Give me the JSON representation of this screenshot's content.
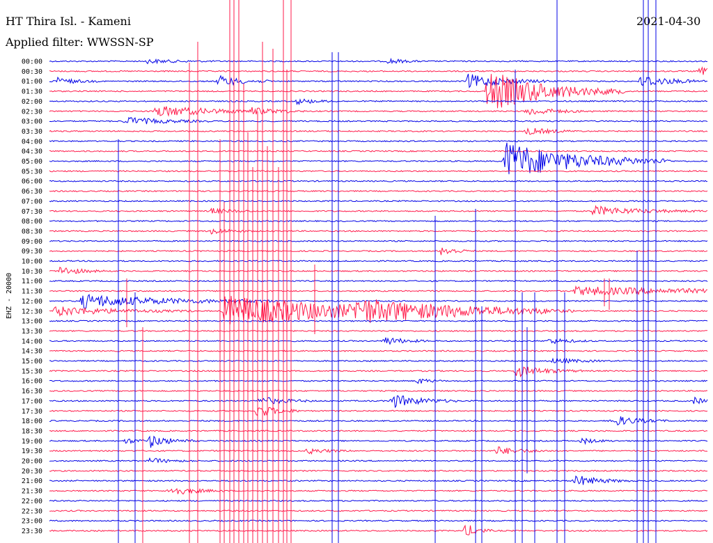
{
  "header": {
    "station": "HT Thira Isl. - Kameni",
    "filter": "Applied filter: WWSSN-SP",
    "date": "2021-04-30"
  },
  "colors": {
    "trace_a": "#0000e6",
    "trace_b": "#ff1a4a"
  },
  "chart_data": {
    "type": "line",
    "title": "HT Thira Isl. - Kameni",
    "subtitle": "Applied filter: WWSSN-SP",
    "ylabel": "EHZ - 20000",
    "y_ticks": [
      "00:00",
      "00:30",
      "01:00",
      "01:30",
      "02:00",
      "02:30",
      "03:00",
      "03:30",
      "04:00",
      "04:30",
      "05:00",
      "05:30",
      "06:00",
      "06:30",
      "07:00",
      "07:30",
      "08:00",
      "08:30",
      "09:00",
      "09:30",
      "10:00",
      "10:30",
      "11:00",
      "11:30",
      "12:00",
      "12:30",
      "13:00",
      "13:30",
      "14:00",
      "14:30",
      "15:00",
      "15:30",
      "16:00",
      "16:30",
      "17:00",
      "17:30",
      "18:00",
      "18:30",
      "19:00",
      "19:30",
      "20:00",
      "20:30",
      "21:00",
      "21:30",
      "22:00",
      "22:30",
      "23:00",
      "23:30"
    ],
    "x_range_minutes": [
      0,
      30
    ],
    "row_colors": [
      "blue",
      "red"
    ],
    "events": [
      {
        "row": "00:00",
        "minute": 4.5,
        "amp": 3,
        "dur": 1.2
      },
      {
        "row": "00:00",
        "minute": 15.5,
        "amp": 4,
        "dur": 0.6
      },
      {
        "row": "00:30",
        "minute": 29.7,
        "amp": 6,
        "dur": 0.5
      },
      {
        "row": "01:00",
        "minute": 0.2,
        "amp": 6,
        "dur": 0.8
      },
      {
        "row": "01:00",
        "minute": 7.7,
        "amp": 8,
        "dur": 1.0
      },
      {
        "row": "01:00",
        "minute": 19.1,
        "amp": 10,
        "dur": 1.5
      },
      {
        "row": "01:00",
        "minute": 27.0,
        "amp": 9,
        "dur": 1.2
      },
      {
        "row": "01:30",
        "minute": 20.0,
        "amp": 30,
        "dur": 2.5
      },
      {
        "row": "02:00",
        "minute": 11.3,
        "amp": 4,
        "dur": 0.8
      },
      {
        "row": "02:30",
        "minute": 4.8,
        "amp": 8,
        "dur": 2.5
      },
      {
        "row": "02:30",
        "minute": 9.2,
        "amp": 4,
        "dur": 1.0
      },
      {
        "row": "02:30",
        "minute": 21.8,
        "amp": 6,
        "dur": 1.2
      },
      {
        "row": "03:00",
        "minute": 3.5,
        "amp": 6,
        "dur": 1.5
      },
      {
        "row": "03:30",
        "minute": 21.8,
        "amp": 5,
        "dur": 1.0
      },
      {
        "row": "05:00",
        "minute": 20.8,
        "amp": 28,
        "dur": 3.0
      },
      {
        "row": "07:30",
        "minute": 7.4,
        "amp": 4,
        "dur": 0.8
      },
      {
        "row": "07:30",
        "minute": 24.8,
        "amp": 7,
        "dur": 2.0
      },
      {
        "row": "08:30",
        "minute": 7.4,
        "amp": 4,
        "dur": 0.8
      },
      {
        "row": "09:30",
        "minute": 17.9,
        "amp": 7,
        "dur": 0.6
      },
      {
        "row": "10:30",
        "minute": 0.5,
        "amp": 7,
        "dur": 0.8
      },
      {
        "row": "11:30",
        "minute": 24.0,
        "amp": 6,
        "dur": 6.0
      },
      {
        "row": "12:00",
        "minute": 1.5,
        "amp": 10,
        "dur": 3.5
      },
      {
        "row": "12:30",
        "minute": 0.3,
        "amp": 7,
        "dur": 2.5
      },
      {
        "row": "12:30",
        "minute": 8.0,
        "amp": 22,
        "dur": 6.0
      },
      {
        "row": "12:30",
        "minute": 14.0,
        "amp": 12,
        "dur": 4.0
      },
      {
        "row": "14:00",
        "minute": 15.3,
        "amp": 6,
        "dur": 0.8
      },
      {
        "row": "14:00",
        "minute": 22.8,
        "amp": 4,
        "dur": 0.8
      },
      {
        "row": "15:00",
        "minute": 23.0,
        "amp": 4,
        "dur": 1.0
      },
      {
        "row": "15:30",
        "minute": 21.3,
        "amp": 8,
        "dur": 1.2
      },
      {
        "row": "16:00",
        "minute": 16.8,
        "amp": 4,
        "dur": 0.5
      },
      {
        "row": "17:00",
        "minute": 9.6,
        "amp": 6,
        "dur": 1.0
      },
      {
        "row": "17:00",
        "minute": 15.6,
        "amp": 10,
        "dur": 1.2
      },
      {
        "row": "17:00",
        "minute": 29.4,
        "amp": 5,
        "dur": 0.5
      },
      {
        "row": "17:30",
        "minute": 9.5,
        "amp": 10,
        "dur": 0.8
      },
      {
        "row": "18:00",
        "minute": 25.7,
        "amp": 8,
        "dur": 1.0
      },
      {
        "row": "19:00",
        "minute": 3.5,
        "amp": 4,
        "dur": 0.5
      },
      {
        "row": "19:00",
        "minute": 4.6,
        "amp": 9,
        "dur": 0.8
      },
      {
        "row": "19:00",
        "minute": 24.3,
        "amp": 4,
        "dur": 0.6
      },
      {
        "row": "19:30",
        "minute": 11.8,
        "amp": 4,
        "dur": 0.8
      },
      {
        "row": "19:30",
        "minute": 20.4,
        "amp": 6,
        "dur": 1.0
      },
      {
        "row": "20:00",
        "minute": 4.6,
        "amp": 4,
        "dur": 0.8
      },
      {
        "row": "21:00",
        "minute": 24.0,
        "amp": 8,
        "dur": 1.0
      },
      {
        "row": "21:30",
        "minute": 5.5,
        "amp": 7,
        "dur": 1.0
      },
      {
        "row": "23:30",
        "minute": 19.0,
        "amp": 10,
        "dur": 0.5
      }
    ]
  }
}
